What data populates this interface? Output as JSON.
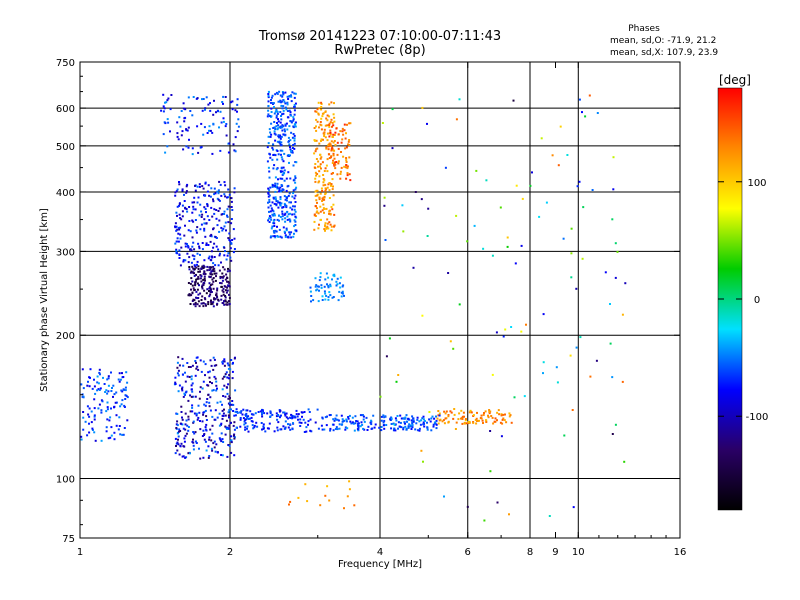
{
  "chart_data": {
    "type": "scatter",
    "title": "Tromsø 20141223 07:10:00-07:11:43",
    "subtitle": "RwPretec (8p)",
    "stats": {
      "header": "Phases",
      "line1": "mean, sd,O: -71.9, 21.2",
      "line2": "mean, sd,X: 107.9, 23.9"
    },
    "xlabel": "Frequency [MHz]",
    "ylabel": "Stationary phase Virtual Height [km]",
    "x_scale": "log",
    "y_scale": "log",
    "xlim": [
      1,
      16
    ],
    "ylim": [
      75,
      750
    ],
    "x_ticks": [
      {
        "v": 1,
        "label": "1"
      },
      {
        "v": 2,
        "label": "2"
      },
      {
        "v": 4,
        "label": "4"
      },
      {
        "v": 6,
        "label": "6"
      },
      {
        "v": 8,
        "label": "8"
      },
      {
        "v": 9,
        "label": "9"
      },
      {
        "v": 10,
        "label": "10"
      },
      {
        "v": 16,
        "label": "16"
      }
    ],
    "x_major_grid": [
      2,
      4,
      6,
      8,
      10
    ],
    "y_ticks": [
      {
        "v": 75,
        "label": "75"
      },
      {
        "v": 100,
        "label": "100"
      },
      {
        "v": 200,
        "label": "200"
      },
      {
        "v": 300,
        "label": "300"
      },
      {
        "v": 400,
        "label": "400"
      },
      {
        "v": 500,
        "label": "500"
      },
      {
        "v": 600,
        "label": "600"
      },
      {
        "v": 750,
        "label": "750"
      }
    ],
    "y_major_grid": [
      100,
      200,
      300,
      400,
      500,
      600
    ],
    "grid": true,
    "colorbar": {
      "unit": "[deg]",
      "range": [
        -180,
        180
      ],
      "ticks": [
        {
          "v": 100,
          "label": "100"
        },
        {
          "v": 0,
          "label": "0"
        },
        {
          "v": -100,
          "label": "-100"
        }
      ],
      "colormap": "rainbow",
      "stops": [
        "#000000",
        "#2a0066",
        "#0000ff",
        "#00e0ff",
        "#00cc00",
        "#ffff00",
        "#ff8800",
        "#ff0000"
      ]
    },
    "clusters": [
      {
        "x": [
          1.0,
          1.25
        ],
        "y": [
          120,
          170
        ],
        "n": 130,
        "phase": [
          -90,
          -40
        ]
      },
      {
        "x": [
          1.55,
          2.05
        ],
        "y": [
          110,
          180
        ],
        "n": 320,
        "phase": [
          -130,
          -40
        ]
      },
      {
        "x": [
          2.05,
          3.0
        ],
        "y": [
          125,
          140
        ],
        "n": 150,
        "phase": [
          -90,
          -50
        ]
      },
      {
        "x": [
          3.0,
          5.2
        ],
        "y": [
          126,
          136
        ],
        "n": 200,
        "phase": [
          -80,
          -40
        ]
      },
      {
        "x": [
          5.2,
          7.4
        ],
        "y": [
          130,
          140
        ],
        "n": 100,
        "phase": [
          100,
          150
        ]
      },
      {
        "x": [
          1.65,
          2.0
        ],
        "y": [
          230,
          280
        ],
        "n": 230,
        "phase": [
          -160,
          -100
        ]
      },
      {
        "x": [
          1.55,
          2.05
        ],
        "y": [
          280,
          420
        ],
        "n": 260,
        "phase": [
          -110,
          -50
        ]
      },
      {
        "x": [
          1.45,
          2.1
        ],
        "y": [
          480,
          640
        ],
        "n": 110,
        "phase": [
          -100,
          -40
        ]
      },
      {
        "x": [
          2.38,
          2.72
        ],
        "y": [
          320,
          650
        ],
        "n": 420,
        "phase": [
          -80,
          -40
        ]
      },
      {
        "x": [
          2.95,
          3.25
        ],
        "y": [
          330,
          620
        ],
        "n": 210,
        "phase": [
          100,
          150
        ]
      },
      {
        "x": [
          3.15,
          3.5
        ],
        "y": [
          420,
          560
        ],
        "n": 80,
        "phase": [
          110,
          170
        ]
      },
      {
        "x": [
          2.9,
          3.4
        ],
        "y": [
          235,
          270
        ],
        "n": 60,
        "phase": [
          -60,
          -30
        ]
      },
      {
        "x": [
          2.4,
          3.6
        ],
        "y": [
          85,
          100
        ],
        "n": 14,
        "phase": [
          100,
          150
        ]
      },
      {
        "x": [
          4.0,
          12.5
        ],
        "y": [
          80,
          640
        ],
        "n": 120,
        "phase": [
          -150,
          150
        ]
      }
    ]
  }
}
